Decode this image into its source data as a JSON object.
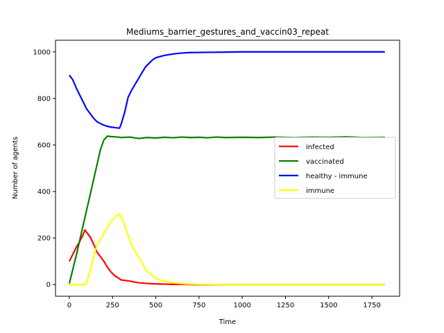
{
  "chart_data": {
    "type": "line",
    "title": "Mediums_barrier_gestures_and_vaccin03_repeat",
    "xlabel": "Time",
    "ylabel": "Number of agents",
    "xlim": [
      -80,
      1910
    ],
    "ylim": [
      -50,
      1050
    ],
    "xticks": [
      0,
      250,
      500,
      750,
      1000,
      1250,
      1500,
      1750
    ],
    "yticks": [
      0,
      200,
      400,
      600,
      800,
      1000
    ],
    "grid": false,
    "legend_position": "center-right",
    "series": [
      {
        "name": "infected",
        "color": "#ff0000",
        "x": [
          0,
          20,
          40,
          60,
          80,
          90,
          100,
          120,
          140,
          160,
          180,
          200,
          220,
          240,
          260,
          280,
          300,
          350,
          400,
          450,
          500,
          550,
          600,
          650,
          700,
          750,
          800,
          900,
          1000,
          1250,
          1500,
          1825
        ],
        "y": [
          100,
          130,
          160,
          185,
          215,
          235,
          225,
          205,
          175,
          140,
          120,
          100,
          75,
          55,
          40,
          30,
          20,
          15,
          8,
          5,
          3,
          2,
          1,
          1,
          0,
          0,
          0,
          0,
          0,
          0,
          0,
          0
        ]
      },
      {
        "name": "vaccinated",
        "color": "#008000",
        "x": [
          0,
          20,
          40,
          60,
          80,
          100,
          120,
          140,
          160,
          180,
          200,
          220,
          240,
          260,
          280,
          300,
          350,
          400,
          450,
          500,
          550,
          600,
          650,
          700,
          750,
          800,
          850,
          900,
          1000,
          1100,
          1200,
          1300,
          1400,
          1500,
          1600,
          1700,
          1825
        ],
        "y": [
          5,
          65,
          125,
          190,
          255,
          320,
          385,
          450,
          515,
          580,
          622,
          638,
          636,
          635,
          634,
          632,
          634,
          628,
          632,
          630,
          633,
          631,
          634,
          632,
          633,
          631,
          634,
          632,
          633,
          632,
          634,
          632,
          634,
          633,
          635,
          632,
          633
        ]
      },
      {
        "name": "healthy - immune",
        "color": "#0000ff",
        "x": [
          0,
          20,
          40,
          60,
          80,
          100,
          120,
          140,
          160,
          180,
          200,
          220,
          240,
          260,
          280,
          290,
          300,
          320,
          340,
          360,
          380,
          400,
          420,
          440,
          460,
          480,
          500,
          550,
          600,
          650,
          700,
          800,
          900,
          1000,
          1250,
          1500,
          1825
        ],
        "y": [
          900,
          880,
          845,
          815,
          785,
          755,
          735,
          715,
          700,
          692,
          685,
          680,
          677,
          675,
          673,
          672,
          690,
          740,
          805,
          835,
          860,
          885,
          910,
          935,
          950,
          965,
          975,
          985,
          991,
          995,
          997,
          998,
          999,
          1000,
          1000,
          1000,
          1000
        ]
      },
      {
        "name": "immune",
        "color": "#ffff00",
        "x": [
          0,
          20,
          40,
          60,
          80,
          90,
          100,
          120,
          140,
          160,
          180,
          200,
          220,
          240,
          260,
          280,
          290,
          300,
          320,
          340,
          360,
          380,
          400,
          420,
          440,
          460,
          480,
          500,
          550,
          600,
          650,
          700,
          800,
          900,
          1000,
          1250,
          1500,
          1825
        ],
        "y": [
          0,
          0,
          0,
          0,
          0,
          0,
          10,
          60,
          120,
          170,
          195,
          220,
          245,
          270,
          285,
          300,
          305,
          290,
          255,
          210,
          170,
          145,
          120,
          95,
          65,
          50,
          40,
          25,
          15,
          8,
          4,
          2,
          1,
          0,
          0,
          0,
          0,
          0
        ]
      }
    ]
  }
}
